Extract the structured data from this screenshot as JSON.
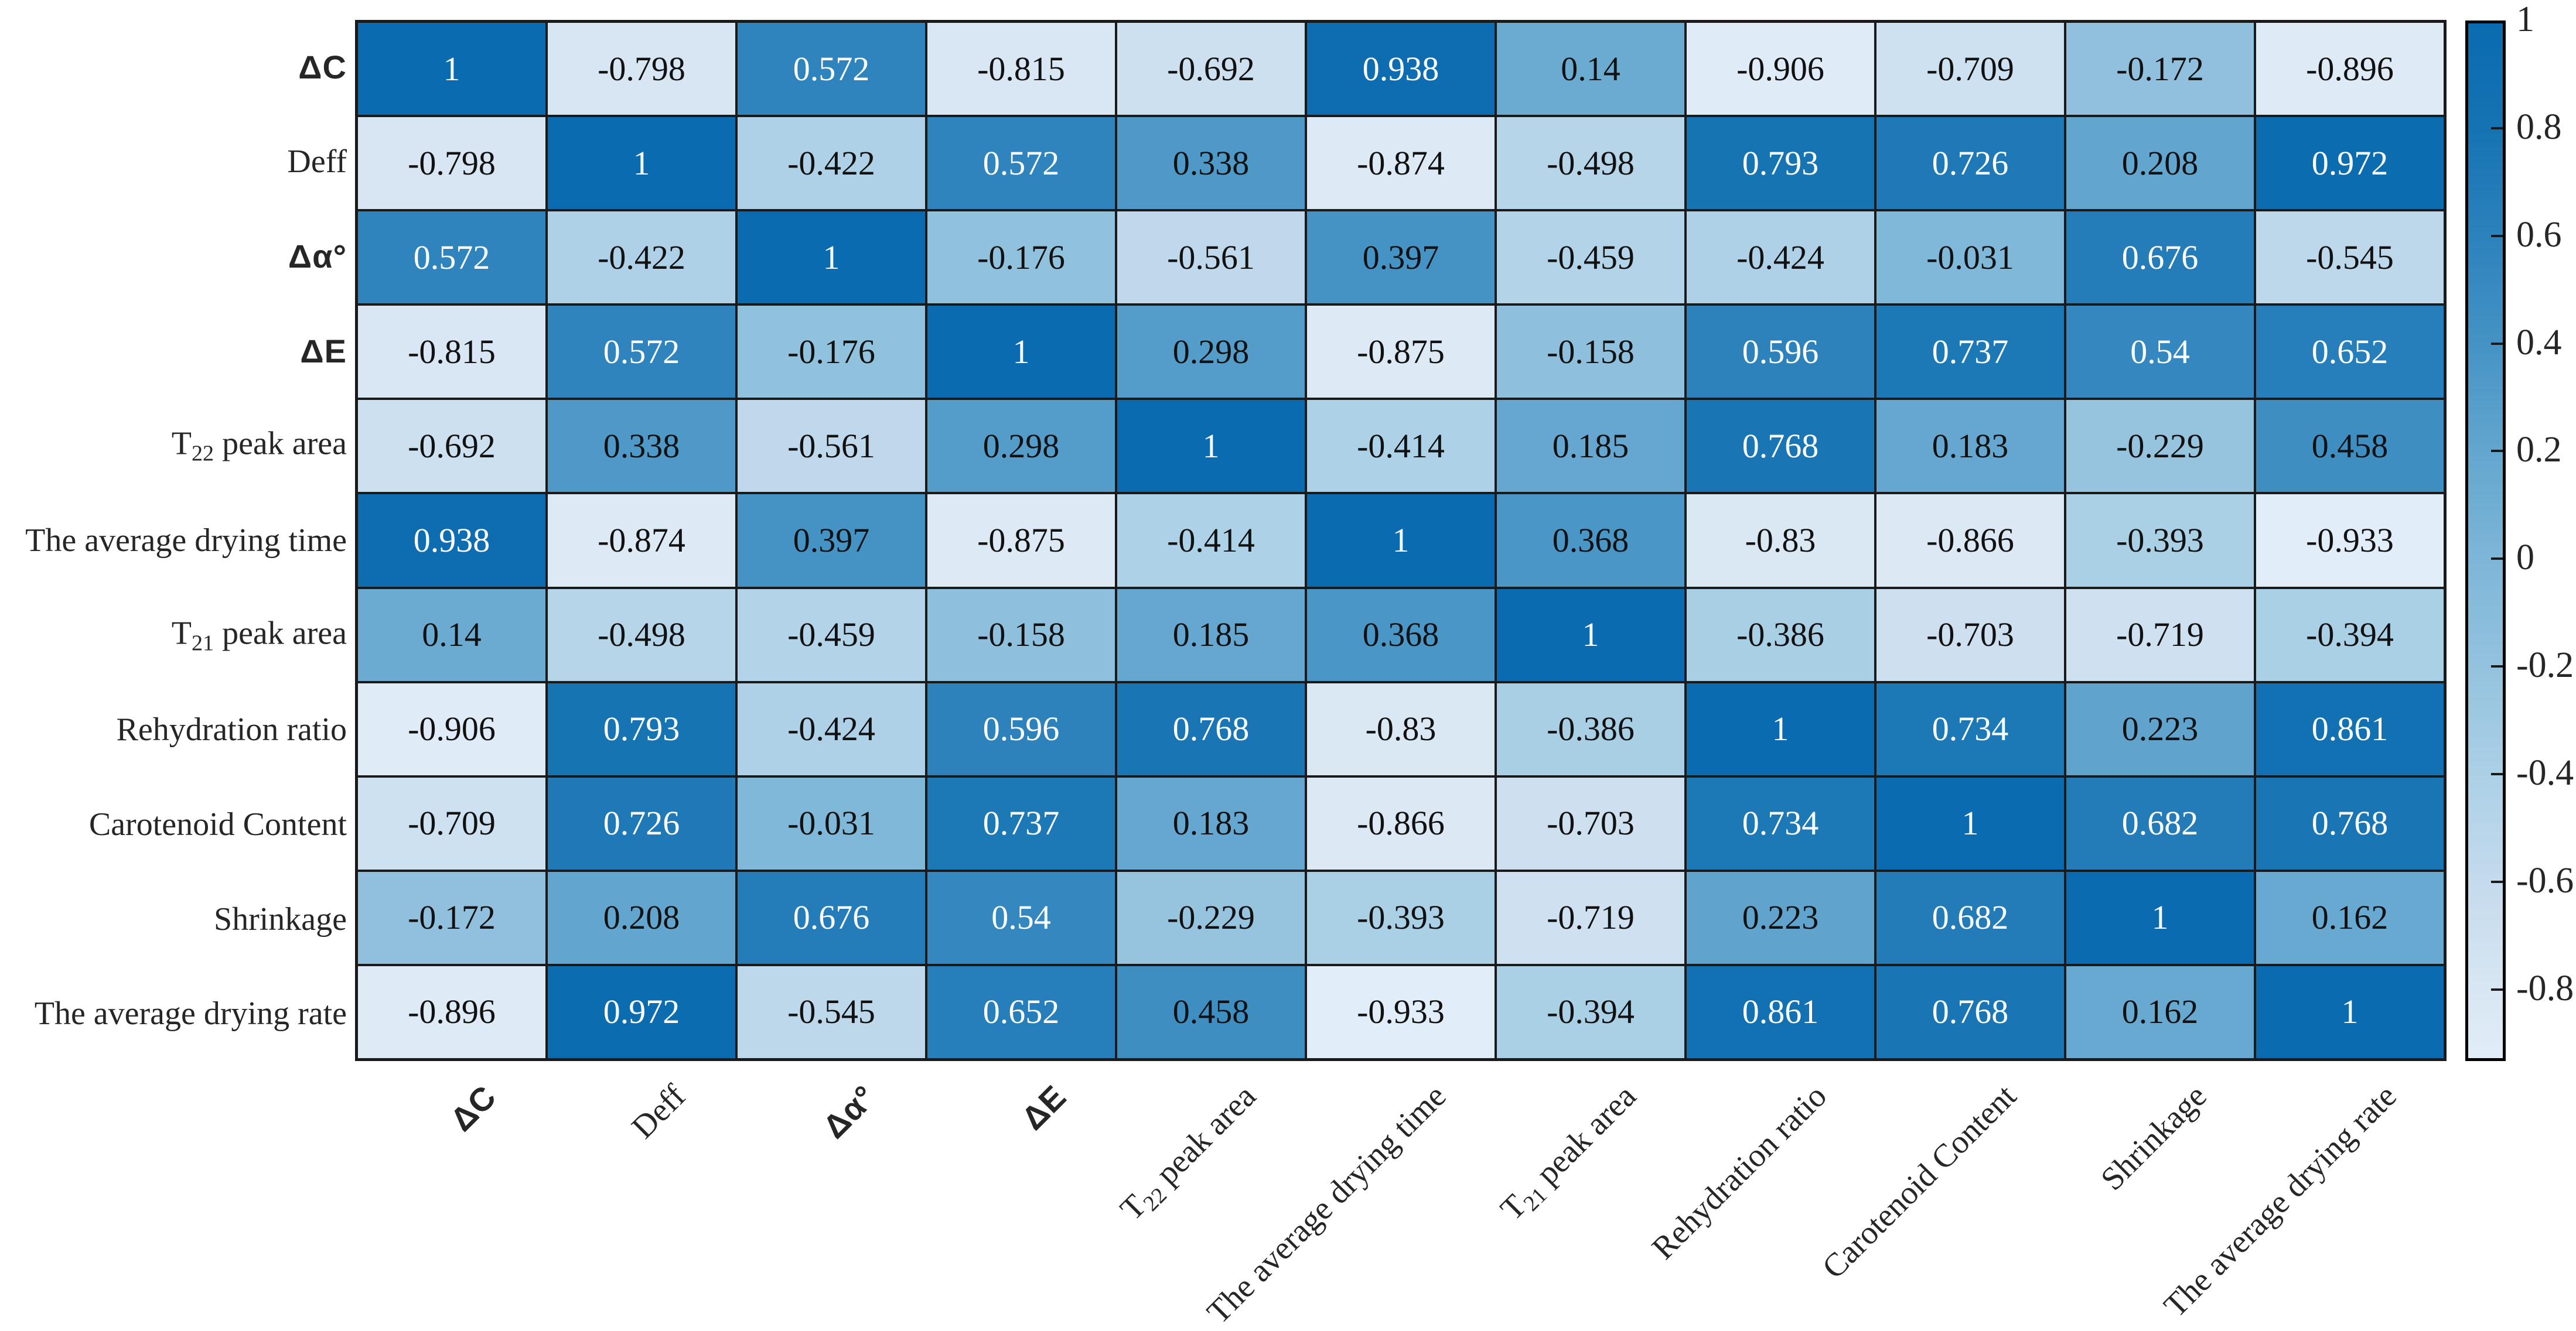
{
  "chart_data": {
    "type": "heatmap",
    "title": "",
    "xlabel": "",
    "ylabel": "",
    "grid": "off",
    "legend_position": "colorbar-right",
    "variables": [
      {
        "pre": "ΔC",
        "sub": "",
        "post": ""
      },
      {
        "pre": "Deff",
        "sub": "",
        "post": ""
      },
      {
        "pre": "Δα°",
        "sub": "",
        "post": ""
      },
      {
        "pre": "ΔE",
        "sub": "",
        "post": ""
      },
      {
        "pre": "T",
        "sub": "22",
        "post": " peak area"
      },
      {
        "pre": "The average drying time",
        "sub": "",
        "post": ""
      },
      {
        "pre": "T",
        "sub": "21",
        "post": " peak area"
      },
      {
        "pre": "Rehydration ratio",
        "sub": "",
        "post": ""
      },
      {
        "pre": "Carotenoid Content",
        "sub": "",
        "post": ""
      },
      {
        "pre": "Shrinkage",
        "sub": "",
        "post": ""
      },
      {
        "pre": "The average drying rate",
        "sub": "",
        "post": ""
      }
    ],
    "matrix": [
      [
        1,
        -0.798,
        0.572,
        -0.815,
        -0.692,
        0.938,
        0.14,
        -0.906,
        -0.709,
        -0.172,
        -0.896
      ],
      [
        -0.798,
        1,
        -0.422,
        0.572,
        0.338,
        -0.874,
        -0.498,
        0.793,
        0.726,
        0.208,
        0.972
      ],
      [
        0.572,
        -0.422,
        1,
        -0.176,
        -0.561,
        0.397,
        -0.459,
        -0.424,
        -0.031,
        0.676,
        -0.545
      ],
      [
        -0.815,
        0.572,
        -0.176,
        1,
        0.298,
        -0.875,
        -0.158,
        0.596,
        0.737,
        0.54,
        0.652
      ],
      [
        -0.692,
        0.338,
        -0.561,
        0.298,
        1,
        -0.414,
        0.185,
        0.768,
        0.183,
        -0.229,
        0.458
      ],
      [
        0.938,
        -0.874,
        0.397,
        -0.875,
        -0.414,
        1,
        0.368,
        -0.83,
        -0.866,
        -0.393,
        -0.933
      ],
      [
        0.14,
        -0.498,
        -0.459,
        -0.158,
        0.185,
        0.368,
        1,
        -0.386,
        -0.703,
        -0.719,
        -0.394
      ],
      [
        -0.906,
        0.793,
        -0.424,
        0.596,
        0.768,
        -0.83,
        -0.386,
        1,
        0.734,
        0.223,
        0.861
      ],
      [
        -0.709,
        0.726,
        -0.031,
        0.737,
        0.183,
        -0.866,
        -0.703,
        0.734,
        1,
        0.682,
        0.768
      ],
      [
        -0.172,
        0.208,
        0.676,
        0.54,
        -0.229,
        -0.393,
        -0.719,
        0.223,
        0.682,
        1,
        0.162
      ],
      [
        -0.896,
        0.972,
        -0.545,
        0.652,
        0.458,
        -0.933,
        -0.394,
        0.861,
        0.768,
        0.162,
        1
      ]
    ],
    "colorbar": {
      "vmax": 1,
      "vmin": -0.933,
      "ticks": [
        {
          "label": "1",
          "value": 1
        },
        {
          "label": "0.8",
          "value": 0.8
        },
        {
          "label": "0.6",
          "value": 0.6
        },
        {
          "label": "0.4",
          "value": 0.4
        },
        {
          "label": "0.2",
          "value": 0.2
        },
        {
          "label": "0",
          "value": 0
        },
        {
          "label": "-0.2",
          "value": -0.2
        },
        {
          "label": "-0.4",
          "value": -0.4
        },
        {
          "label": "-0.6",
          "value": -0.6
        },
        {
          "label": "-0.8",
          "value": -0.8
        }
      ]
    },
    "colors": {
      "cell_border": "#1a1a1a",
      "text_dark": "#111111",
      "text_light": "#ffffff",
      "white_text_threshold": 0.5,
      "colormap_anchors": [
        {
          "v": -0.933,
          "c": "#e1edf8"
        },
        {
          "v": -0.8,
          "c": "#d7e6f2"
        },
        {
          "v": -0.6,
          "c": "#c4daed"
        },
        {
          "v": -0.4,
          "c": "#abd0e6"
        },
        {
          "v": -0.2,
          "c": "#93c2de"
        },
        {
          "v": 0,
          "c": "#7db6d8"
        },
        {
          "v": 0.2,
          "c": "#63a6cf"
        },
        {
          "v": 0.4,
          "c": "#4593c5"
        },
        {
          "v": 0.6,
          "c": "#2c82bc"
        },
        {
          "v": 0.8,
          "c": "#1673b3"
        },
        {
          "v": 1,
          "c": "#0a6bb0"
        }
      ]
    }
  }
}
